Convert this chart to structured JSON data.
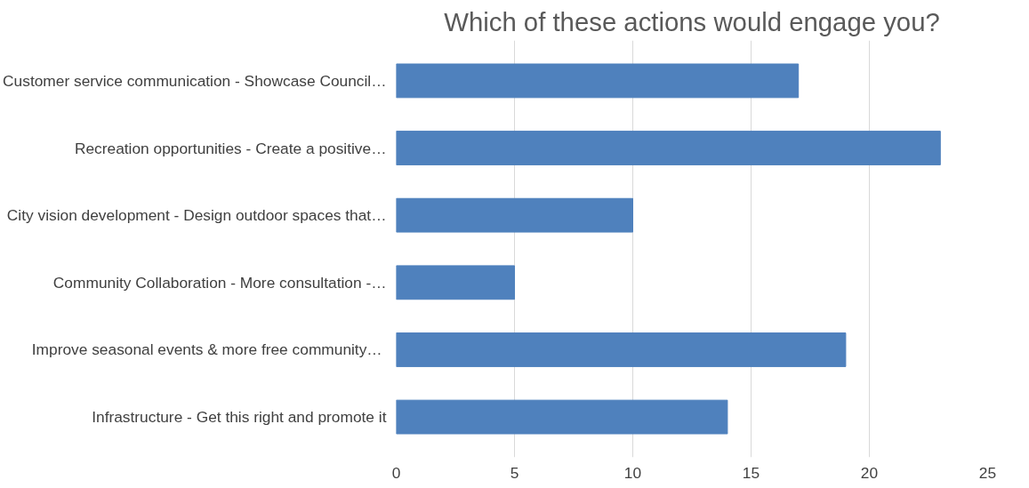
{
  "chart_data": {
    "type": "bar",
    "orientation": "horizontal",
    "title": "Which of these actions would engage you?",
    "categories": [
      "Customer service communication - Showcase Council…",
      "Recreation opportunities - Create a positive…",
      "City vision development - Design outdoor spaces that…",
      "Community Collaboration - More consultation -…",
      "Improve seasonal events & more  free community…",
      "Infrastructure - Get this right and promote it"
    ],
    "values": [
      17,
      23,
      10,
      5,
      19,
      14
    ],
    "color": "#4f81bd",
    "xlim": [
      0,
      25
    ],
    "xticks": [
      0,
      5,
      10,
      15,
      20,
      25
    ],
    "grid": "x"
  }
}
